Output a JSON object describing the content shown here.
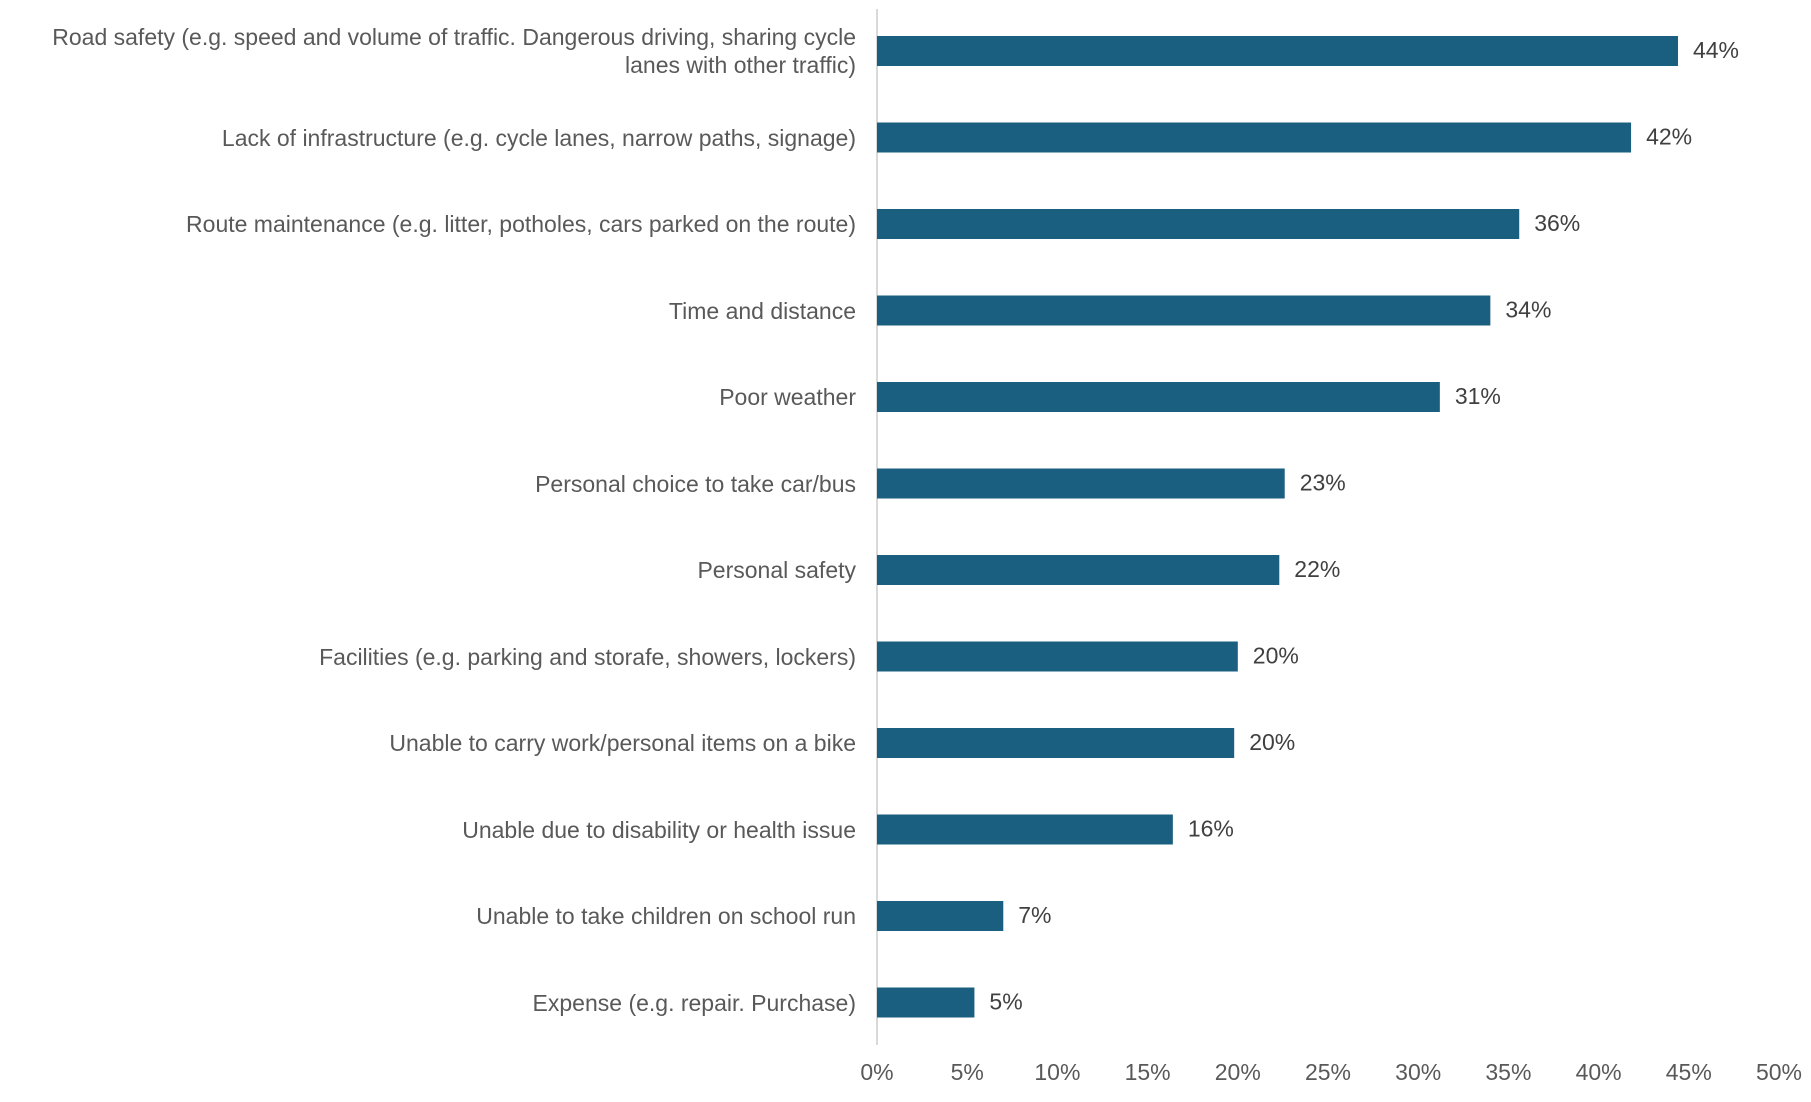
{
  "chart_data": {
    "type": "hbar",
    "categories": [
      "Road safety (e.g. speed and volume of traffic. Dangerous driving, sharing cycle lanes with other traffic)",
      "Lack of infrastructure (e.g. cycle lanes, narrow paths, signage)",
      "Route maintenance (e.g. litter, potholes, cars parked on the route)",
      "Time and distance",
      "Poor weather",
      "Personal choice to take car/bus",
      "Personal safety",
      "Facilities (e.g. parking and storafe, showers, lockers)",
      "Unable to carry work/personal items on a bike",
      "Unable due to disability or health issue",
      "Unable to take children on school run",
      "Expense (e.g. repair. Purchase)"
    ],
    "values": [
      44.4,
      41.8,
      35.6,
      34,
      31.2,
      22.6,
      22.3,
      20,
      19.8,
      16.4,
      7,
      5.4
    ],
    "value_labels": [
      "44%",
      "42%",
      "36%",
      "34%",
      "31%",
      "23%",
      "22%",
      "20%",
      "20%",
      "16%",
      "7%",
      "5%"
    ],
    "color": "#1a5f80",
    "xlim": [
      0,
      50
    ],
    "xticks": [
      {
        "value": 0,
        "label": "0%"
      },
      {
        "value": 5,
        "label": "5%"
      },
      {
        "value": 10,
        "label": "10%"
      },
      {
        "value": 15,
        "label": "15%"
      },
      {
        "value": 20,
        "label": "20%"
      },
      {
        "value": 25,
        "label": "25%"
      },
      {
        "value": 30,
        "label": "30%"
      },
      {
        "value": 35,
        "label": "35%"
      },
      {
        "value": 40,
        "label": "40%"
      },
      {
        "value": 45,
        "label": "45%"
      },
      {
        "value": 50,
        "label": "50%"
      }
    ]
  }
}
